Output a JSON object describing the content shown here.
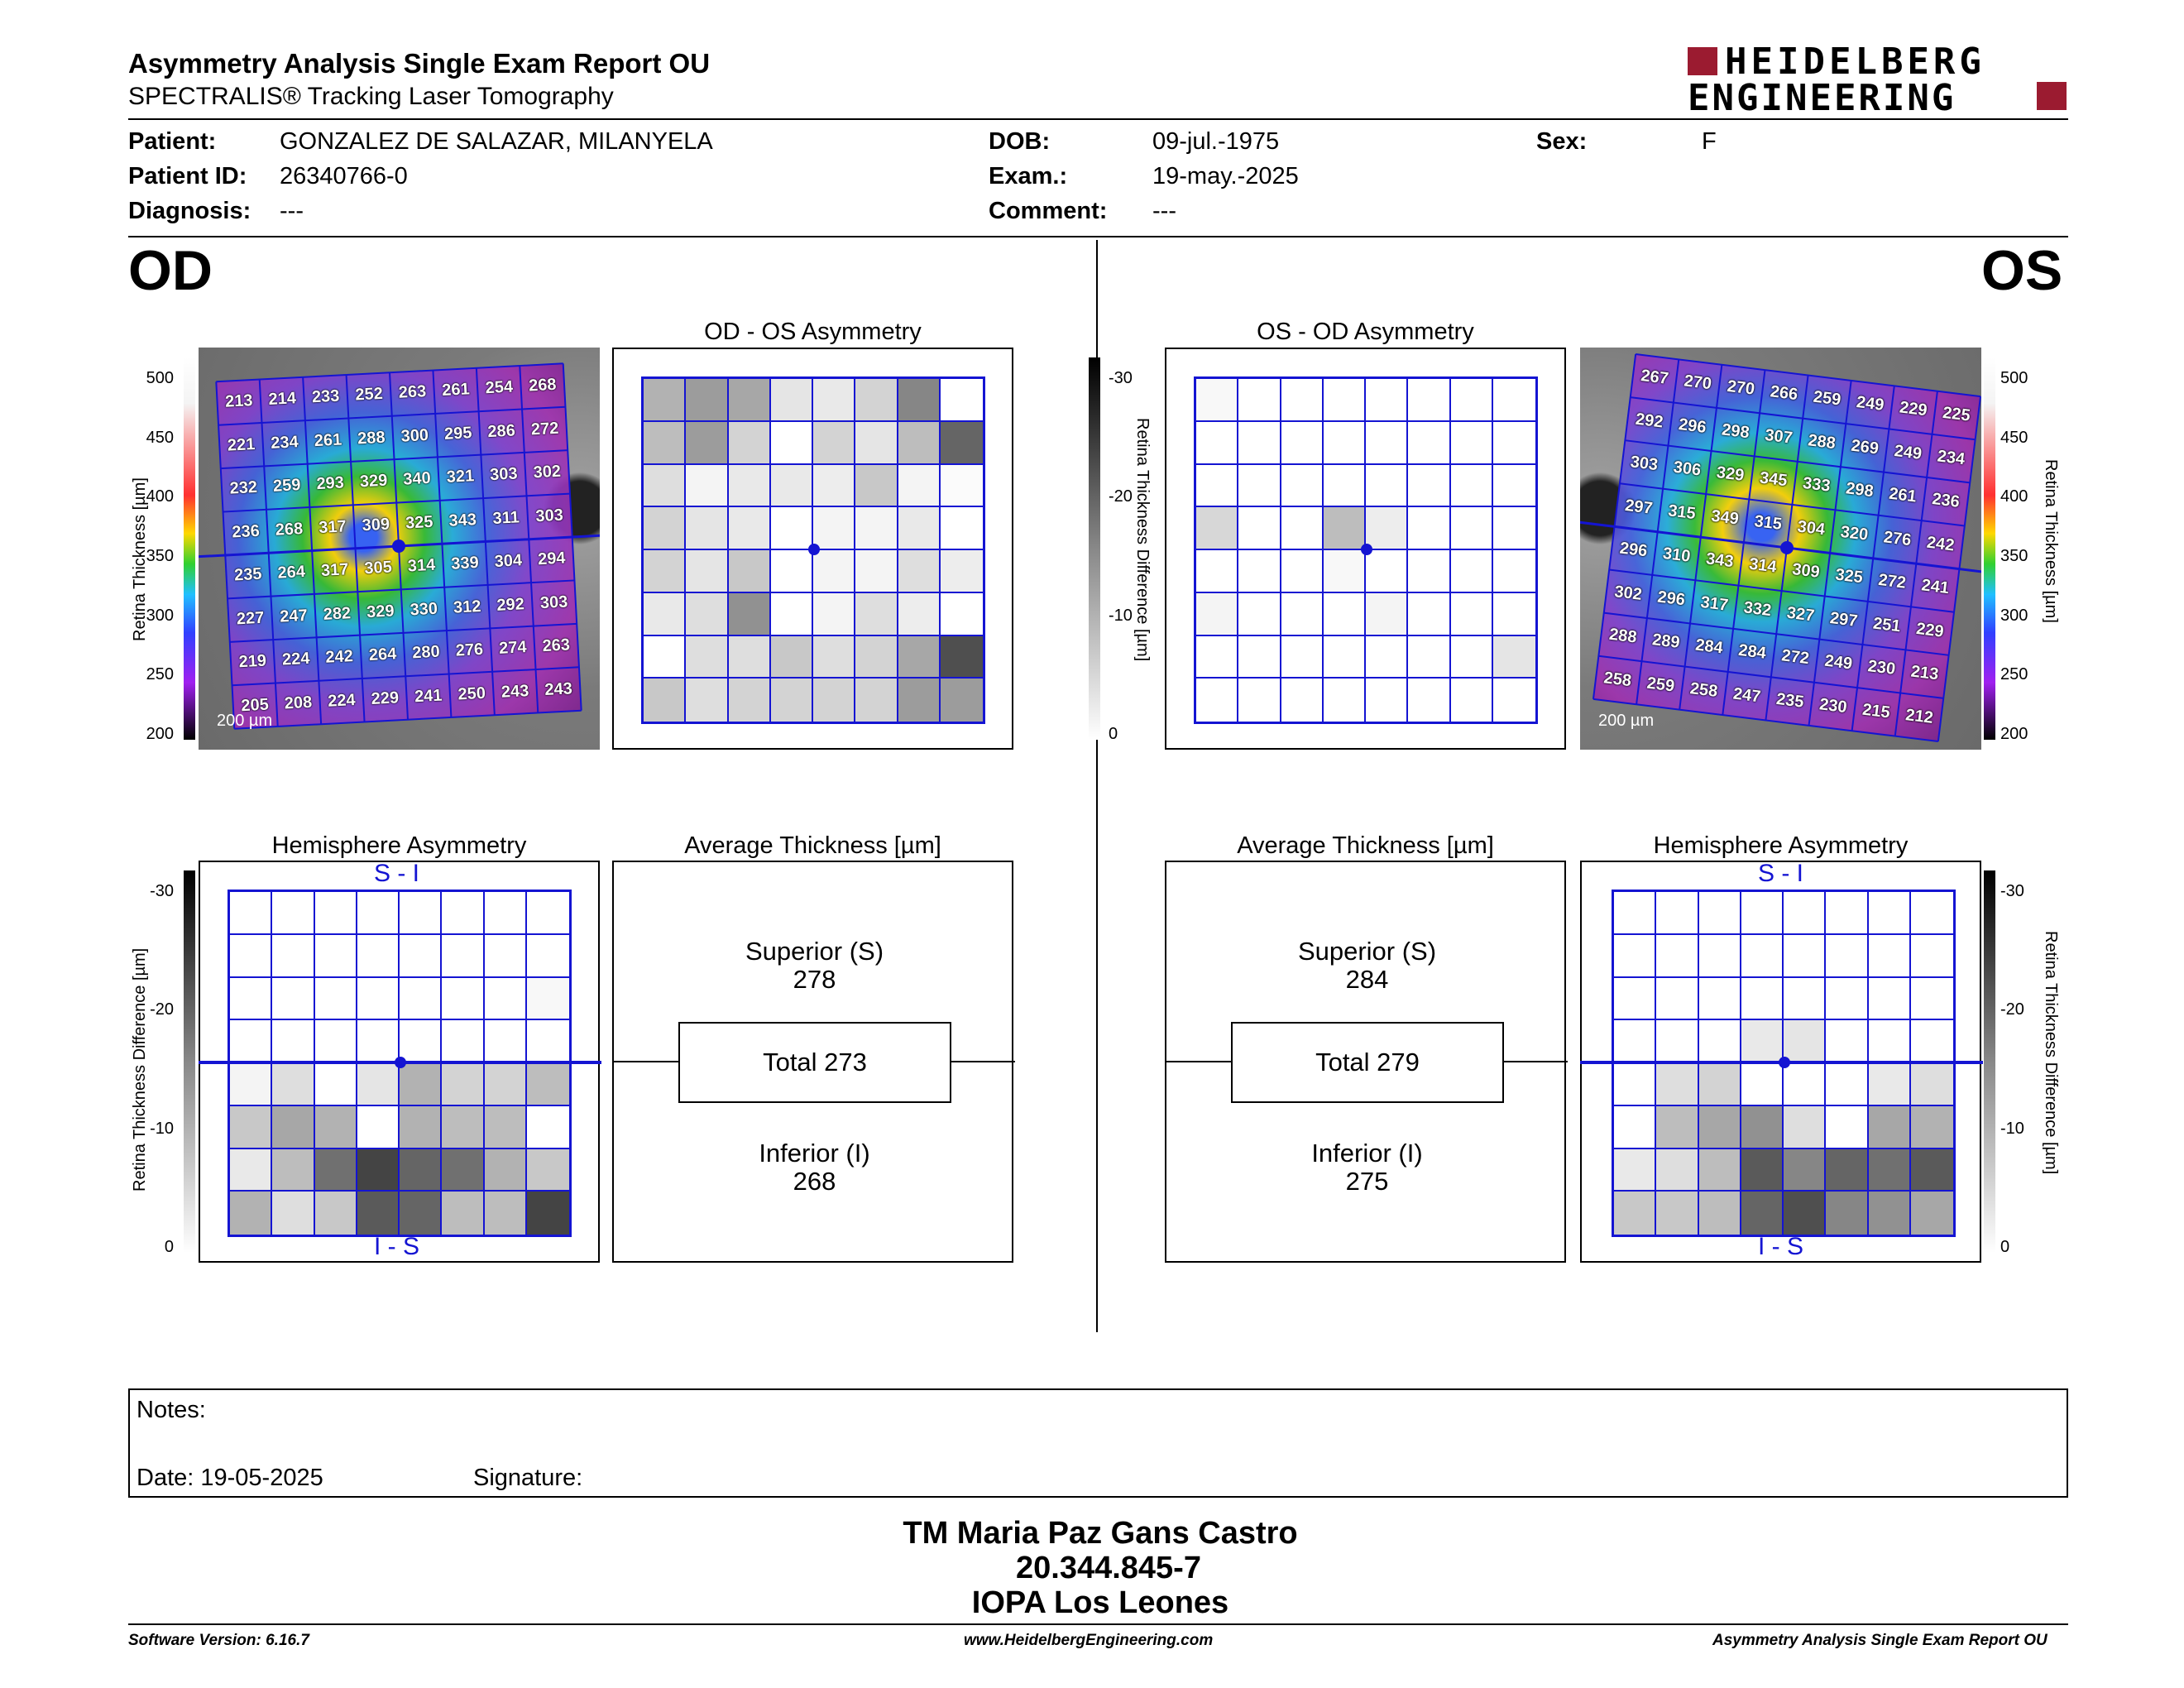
{
  "header": {
    "title": "Asymmetry Analysis Single Exam Report OU",
    "subtitle": "SPECTRALIS® Tracking Laser Tomography",
    "logo_line1": "HEIDELBERG",
    "logo_line2": "ENGINEERING",
    "brand_color": "#9b1b30"
  },
  "patient": {
    "patient_label": "Patient:",
    "patient_value": "GONZALEZ DE SALAZAR, MILANYELA",
    "id_label": "Patient ID:",
    "id_value": "26340766-0",
    "diag_label": "Diagnosis:",
    "diag_value": "---",
    "dob_label": "DOB:",
    "dob_value": "09-jul.-1975",
    "exam_label": "Exam.:",
    "exam_value": "19-may.-2025",
    "comment_label": "Comment:",
    "comment_value": "---",
    "sex_label": "Sex:",
    "sex_value": "F"
  },
  "od": {
    "eye_label": "OD",
    "asym_title": "OD - OS Asymmetry",
    "hemi_title": "Hemisphere Asymmetry",
    "avg_title": "Average Thickness [µm]",
    "superior_label": "Superior (S)",
    "superior_value": "278",
    "total_label": "Total 273",
    "inferior_label": "Inferior (I)",
    "inferior_value": "268",
    "si_label": "S - I",
    "is_label": "I - S",
    "scale_bar": "200 µm",
    "thickness_grid": [
      [
        "213",
        "214",
        "233",
        "252",
        "263",
        "261",
        "254",
        "268"
      ],
      [
        "221",
        "234",
        "261",
        "288",
        "300",
        "295",
        "286",
        "272"
      ],
      [
        "232",
        "259",
        "293",
        "329",
        "340",
        "321",
        "303",
        "302"
      ],
      [
        "236",
        "268",
        "317",
        "309",
        "325",
        "343",
        "311",
        "303"
      ],
      [
        "235",
        "264",
        "317",
        "305",
        "314",
        "339",
        "304",
        "294"
      ],
      [
        "227",
        "247",
        "282",
        "329",
        "330",
        "312",
        "292",
        "303"
      ],
      [
        "219",
        "224",
        "242",
        "264",
        "280",
        "276",
        "274",
        "263"
      ],
      [
        "205",
        "208",
        "224",
        "229",
        "241",
        "250",
        "243",
        "243"
      ]
    ],
    "asym_gray": [
      [
        0.35,
        0.45,
        0.4,
        0.12,
        0.1,
        0.2,
        0.55,
        0.0
      ],
      [
        0.3,
        0.45,
        0.2,
        0.0,
        0.2,
        0.12,
        0.3,
        0.7
      ],
      [
        0.15,
        0.05,
        0.1,
        0.1,
        0.08,
        0.25,
        0.05,
        0.02
      ],
      [
        0.2,
        0.12,
        0.1,
        0.0,
        0.05,
        0.05,
        0.1,
        0.0
      ],
      [
        0.2,
        0.12,
        0.25,
        0.0,
        0.05,
        0.05,
        0.15,
        0.08
      ],
      [
        0.1,
        0.15,
        0.5,
        0.0,
        0.05,
        0.15,
        0.08,
        0.0
      ],
      [
        0.0,
        0.15,
        0.15,
        0.25,
        0.15,
        0.2,
        0.4,
        0.8
      ],
      [
        0.25,
        0.15,
        0.2,
        0.2,
        0.2,
        0.2,
        0.45,
        0.45
      ]
    ],
    "hemi_gray": [
      [
        0.0,
        0.0,
        0.0,
        0.0,
        0.0,
        0.0,
        0.0,
        0.0
      ],
      [
        0.0,
        0.0,
        0.0,
        0.0,
        0.0,
        0.0,
        0.0,
        0.0
      ],
      [
        0.0,
        0.0,
        0.0,
        0.0,
        0.0,
        0.0,
        0.0,
        0.03
      ],
      [
        0.0,
        0.0,
        0.0,
        0.0,
        0.0,
        0.0,
        0.0,
        0.0
      ],
      [
        0.05,
        0.15,
        0.0,
        0.12,
        0.35,
        0.2,
        0.2,
        0.3
      ],
      [
        0.25,
        0.4,
        0.35,
        0.0,
        0.35,
        0.3,
        0.3,
        0.0
      ],
      [
        0.1,
        0.3,
        0.65,
        0.85,
        0.7,
        0.65,
        0.35,
        0.25
      ],
      [
        0.35,
        0.15,
        0.25,
        0.75,
        0.7,
        0.3,
        0.3,
        0.85
      ]
    ]
  },
  "os": {
    "eye_label": "OS",
    "asym_title": "OS - OD Asymmetry",
    "hemi_title": "Hemisphere Asymmetry",
    "avg_title": "Average Thickness [µm]",
    "superior_label": "Superior (S)",
    "superior_value": "284",
    "total_label": "Total 279",
    "inferior_label": "Inferior (I)",
    "inferior_value": "275",
    "si_label": "S - I",
    "is_label": "I - S",
    "scale_bar": "200 µm",
    "thickness_grid": [
      [
        "267",
        "270",
        "270",
        "266",
        "259",
        "249",
        "229",
        "225"
      ],
      [
        "292",
        "296",
        "298",
        "307",
        "288",
        "269",
        "249",
        "234"
      ],
      [
        "303",
        "306",
        "329",
        "345",
        "333",
        "298",
        "261",
        "236"
      ],
      [
        "297",
        "315",
        "349",
        "315",
        "304",
        "320",
        "276",
        "242"
      ],
      [
        "296",
        "310",
        "343",
        "314",
        "309",
        "325",
        "272",
        "241"
      ],
      [
        "302",
        "296",
        "317",
        "332",
        "327",
        "297",
        "251",
        "229"
      ],
      [
        "288",
        "289",
        "284",
        "284",
        "272",
        "249",
        "230",
        "213"
      ],
      [
        "258",
        "259",
        "258",
        "247",
        "235",
        "230",
        "215",
        "212"
      ]
    ],
    "asym_gray": [
      [
        0.03,
        0.0,
        0.0,
        0.0,
        0.0,
        0.0,
        0.0,
        0.0
      ],
      [
        0.0,
        0.0,
        0.0,
        0.0,
        0.0,
        0.0,
        0.0,
        0.0
      ],
      [
        0.0,
        0.0,
        0.0,
        0.0,
        0.0,
        0.0,
        0.0,
        0.0
      ],
      [
        0.18,
        0.0,
        0.0,
        0.3,
        0.08,
        0.0,
        0.0,
        0.0
      ],
      [
        0.0,
        0.0,
        0.0,
        0.03,
        0.0,
        0.0,
        0.0,
        0.0
      ],
      [
        0.05,
        0.0,
        0.0,
        0.0,
        0.05,
        0.0,
        0.0,
        0.0
      ],
      [
        0.0,
        0.0,
        0.0,
        0.0,
        0.0,
        0.0,
        0.0,
        0.12
      ],
      [
        0.0,
        0.0,
        0.0,
        0.0,
        0.0,
        0.0,
        0.0,
        0.0
      ]
    ],
    "hemi_gray": [
      [
        0.0,
        0.0,
        0.0,
        0.0,
        0.0,
        0.0,
        0.0,
        0.0
      ],
      [
        0.0,
        0.0,
        0.0,
        0.0,
        0.0,
        0.0,
        0.0,
        0.0
      ],
      [
        0.0,
        0.0,
        0.0,
        0.0,
        0.0,
        0.0,
        0.0,
        0.0
      ],
      [
        0.0,
        0.0,
        0.0,
        0.1,
        0.12,
        0.0,
        0.0,
        0.0
      ],
      [
        0.0,
        0.15,
        0.2,
        0.0,
        0.0,
        0.0,
        0.1,
        0.15
      ],
      [
        0.0,
        0.3,
        0.4,
        0.5,
        0.15,
        0.0,
        0.4,
        0.35
      ],
      [
        0.1,
        0.15,
        0.3,
        0.75,
        0.55,
        0.7,
        0.65,
        0.75
      ],
      [
        0.25,
        0.25,
        0.3,
        0.7,
        0.8,
        0.55,
        0.5,
        0.4
      ]
    ]
  },
  "scales": {
    "thickness_label": "Retina Thickness [µm]",
    "thickness_ticks": [
      "500",
      "450",
      "400",
      "350",
      "300",
      "250",
      "200"
    ],
    "diff_label": "Retina Thickness Difference [µm]",
    "diff_ticks": [
      "-30",
      "-20",
      "-10",
      "0"
    ]
  },
  "notes": {
    "notes_label": "Notes:",
    "date_label": "Date: 19-05-2025",
    "signature_label": "Signature:"
  },
  "signoff": {
    "name": "TM Maria Paz Gans Castro",
    "id": "20.344.845-7",
    "clinic": "IOPA Los Leones"
  },
  "footer": {
    "software": "Software Version: 6.16.7",
    "url": "www.HeidelbergEngineering.com",
    "report": "Asymmetry Analysis Single Exam Report OU"
  }
}
